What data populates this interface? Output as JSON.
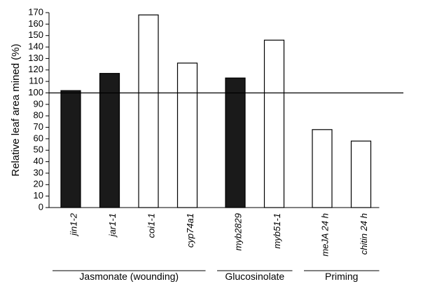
{
  "chart_data": {
    "type": "bar",
    "title": "",
    "xlabel": "",
    "ylabel": "Relative leaf area mined (%)",
    "ylim": [
      0,
      170
    ],
    "yticks": [
      0,
      10,
      20,
      30,
      40,
      50,
      60,
      70,
      80,
      90,
      100,
      110,
      120,
      130,
      140,
      150,
      160,
      170
    ],
    "reference_line": 100,
    "grid": false,
    "categories": [
      "jin1-2",
      "jar1-1",
      "coi1-1",
      "cyp74a1",
      "myb2829",
      "myb51-1",
      "meJA 24 h",
      "chitin 24 h"
    ],
    "values": [
      102,
      117,
      168,
      126,
      113,
      146,
      68,
      58
    ],
    "bar_fill": [
      "filled",
      "filled",
      "open",
      "open",
      "filled",
      "open",
      "open",
      "open"
    ],
    "groups": [
      {
        "label": "Jasmonate (wounding)",
        "start": 0,
        "end": 3
      },
      {
        "label": "Glucosinolate",
        "start": 4,
        "end": 5
      },
      {
        "label": "Priming",
        "start": 6,
        "end": 7
      }
    ],
    "colors": {
      "filled": "#1a1a1a",
      "open": "#ffffff",
      "stroke": "#000000"
    }
  }
}
